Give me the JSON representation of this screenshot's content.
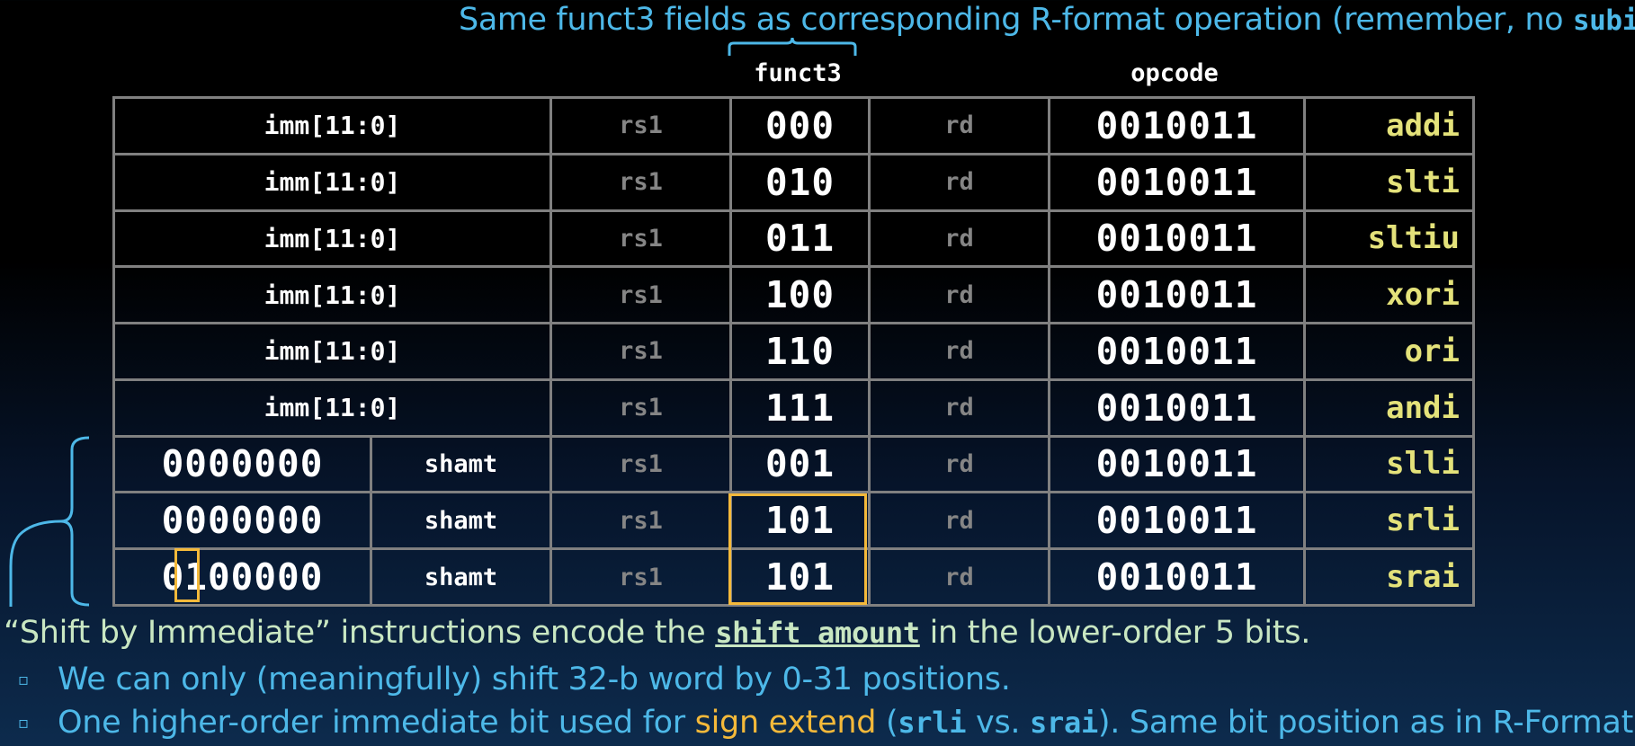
{
  "top_note": {
    "text": "Same funct3 fields as corresponding R-format operation (remember, no ",
    "code": "subi",
    "end": ")"
  },
  "headers": {
    "funct3": "funct3",
    "opcode": "opcode"
  },
  "imm_rows": [
    {
      "imm": "imm[11:0]",
      "rs1": "rs1",
      "funct3": "000",
      "rd": "rd",
      "opcode": "0010011",
      "mnemonic": "addi"
    },
    {
      "imm": "imm[11:0]",
      "rs1": "rs1",
      "funct3": "010",
      "rd": "rd",
      "opcode": "0010011",
      "mnemonic": "slti"
    },
    {
      "imm": "imm[11:0]",
      "rs1": "rs1",
      "funct3": "011",
      "rd": "rd",
      "opcode": "0010011",
      "mnemonic": "sltiu"
    },
    {
      "imm": "imm[11:0]",
      "rs1": "rs1",
      "funct3": "100",
      "rd": "rd",
      "opcode": "0010011",
      "mnemonic": "xori"
    },
    {
      "imm": "imm[11:0]",
      "rs1": "rs1",
      "funct3": "110",
      "rd": "rd",
      "opcode": "0010011",
      "mnemonic": "ori"
    },
    {
      "imm": "imm[11:0]",
      "rs1": "rs1",
      "funct3": "111",
      "rd": "rd",
      "opcode": "0010011",
      "mnemonic": "andi"
    }
  ],
  "shift_rows": [
    {
      "upper": "0000000",
      "shamt": "shamt",
      "rs1": "rs1",
      "funct3": "001",
      "rd": "rd",
      "opcode": "0010011",
      "mnemonic": "slli"
    },
    {
      "upper": "0000000",
      "shamt": "shamt",
      "rs1": "rs1",
      "funct3": "101",
      "rd": "rd",
      "opcode": "0010011",
      "mnemonic": "srli"
    },
    {
      "upper": "0100000",
      "shamt": "shamt",
      "rs1": "rs1",
      "funct3": "101",
      "rd": "rd",
      "opcode": "0010011",
      "mnemonic": "srai"
    }
  ],
  "bottom": {
    "line1": {
      "a": "“Shift by Immediate” instructions encode the ",
      "code": "shift amount",
      "b": " in the lower-order 5 bits."
    },
    "line2": "We can only (meaningfully) shift 32-b word by 0-31 positions.",
    "line3": {
      "a": "One higher-order immediate bit used for ",
      "hl": "sign extend",
      "b": " (",
      "c1": "srli",
      "c": " vs. ",
      "c2": "srai",
      "d": "). Same bit position as in R-Format!"
    },
    "bullet": "▫"
  },
  "colors": {
    "accent_blue": "#4db8e8",
    "highlight_orange": "#f4b93a",
    "mnemonic_yellow": "#e4e27a",
    "grid": "#808080"
  }
}
